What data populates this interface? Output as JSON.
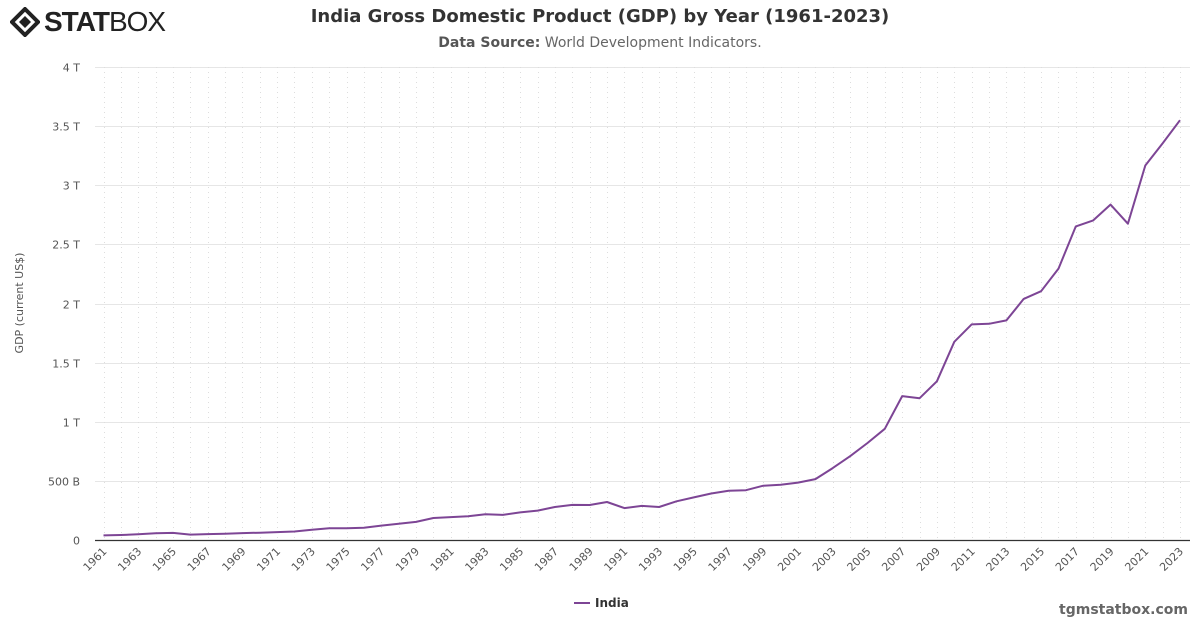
{
  "logo": {
    "bold": "STAT",
    "light": "BOX"
  },
  "header": {
    "title": "India Gross Domestic Product (GDP) by Year (1961-2023)",
    "subtitle_label": "Data Source:",
    "subtitle_text": "World Development Indicators."
  },
  "footer": "tgmstatbox.com",
  "colors": {
    "series": "#7d4595",
    "grid": "#e6e6e6",
    "axis": "#333333"
  },
  "chart_data": {
    "type": "line",
    "title": "India Gross Domestic Product (GDP) by Year (1961-2023)",
    "ylabel": "GDP (current US$)",
    "xlabel": "",
    "ylim": [
      0,
      4
    ],
    "y_unit": "trillion US$",
    "y_ticks": [
      {
        "v": 0,
        "label": "0"
      },
      {
        "v": 0.5,
        "label": "500 B"
      },
      {
        "v": 1,
        "label": "1 T"
      },
      {
        "v": 1.5,
        "label": "1.5 T"
      },
      {
        "v": 2,
        "label": "2 T"
      },
      {
        "v": 2.5,
        "label": "2.5 T"
      },
      {
        "v": 3,
        "label": "3 T"
      },
      {
        "v": 3.5,
        "label": "3.5 T"
      },
      {
        "v": 4,
        "label": "4 T"
      }
    ],
    "x_tick_labels": [
      "1961",
      "1963",
      "1965",
      "1967",
      "1969",
      "1971",
      "1973",
      "1975",
      "1977",
      "1979",
      "1981",
      "1983",
      "1985",
      "1987",
      "1989",
      "1991",
      "1993",
      "1995",
      "1997",
      "1999",
      "2001",
      "2003",
      "2005",
      "2007",
      "2009",
      "2011",
      "2013",
      "2015",
      "2017",
      "2019",
      "2021",
      "2023"
    ],
    "grid": true,
    "legend": "bottom-center",
    "series": [
      {
        "name": "India",
        "x": [
          1961,
          1962,
          1963,
          1964,
          1965,
          1966,
          1967,
          1968,
          1969,
          1970,
          1971,
          1972,
          1973,
          1974,
          1975,
          1976,
          1977,
          1978,
          1979,
          1980,
          1981,
          1982,
          1983,
          1984,
          1985,
          1986,
          1987,
          1988,
          1989,
          1990,
          1991,
          1992,
          1993,
          1994,
          1995,
          1996,
          1997,
          1998,
          1999,
          2000,
          2001,
          2002,
          2003,
          2004,
          2005,
          2006,
          2007,
          2008,
          2009,
          2010,
          2011,
          2012,
          2013,
          2014,
          2015,
          2016,
          2017,
          2018,
          2019,
          2020,
          2021,
          2022,
          2023
        ],
        "values": [
          0.039,
          0.042,
          0.048,
          0.057,
          0.06,
          0.046,
          0.05,
          0.053,
          0.058,
          0.062,
          0.067,
          0.072,
          0.086,
          0.1,
          0.099,
          0.103,
          0.122,
          0.137,
          0.153,
          0.186,
          0.194,
          0.201,
          0.218,
          0.212,
          0.233,
          0.249,
          0.279,
          0.297,
          0.296,
          0.321,
          0.27,
          0.288,
          0.279,
          0.327,
          0.36,
          0.393,
          0.416,
          0.421,
          0.459,
          0.468,
          0.485,
          0.515,
          0.608,
          0.709,
          0.82,
          0.94,
          1.217,
          1.199,
          1.342,
          1.676,
          1.823,
          1.828,
          1.857,
          2.039,
          2.104,
          2.295,
          2.652,
          2.703,
          2.836,
          2.675,
          3.167,
          3.354,
          3.55
        ]
      }
    ]
  }
}
